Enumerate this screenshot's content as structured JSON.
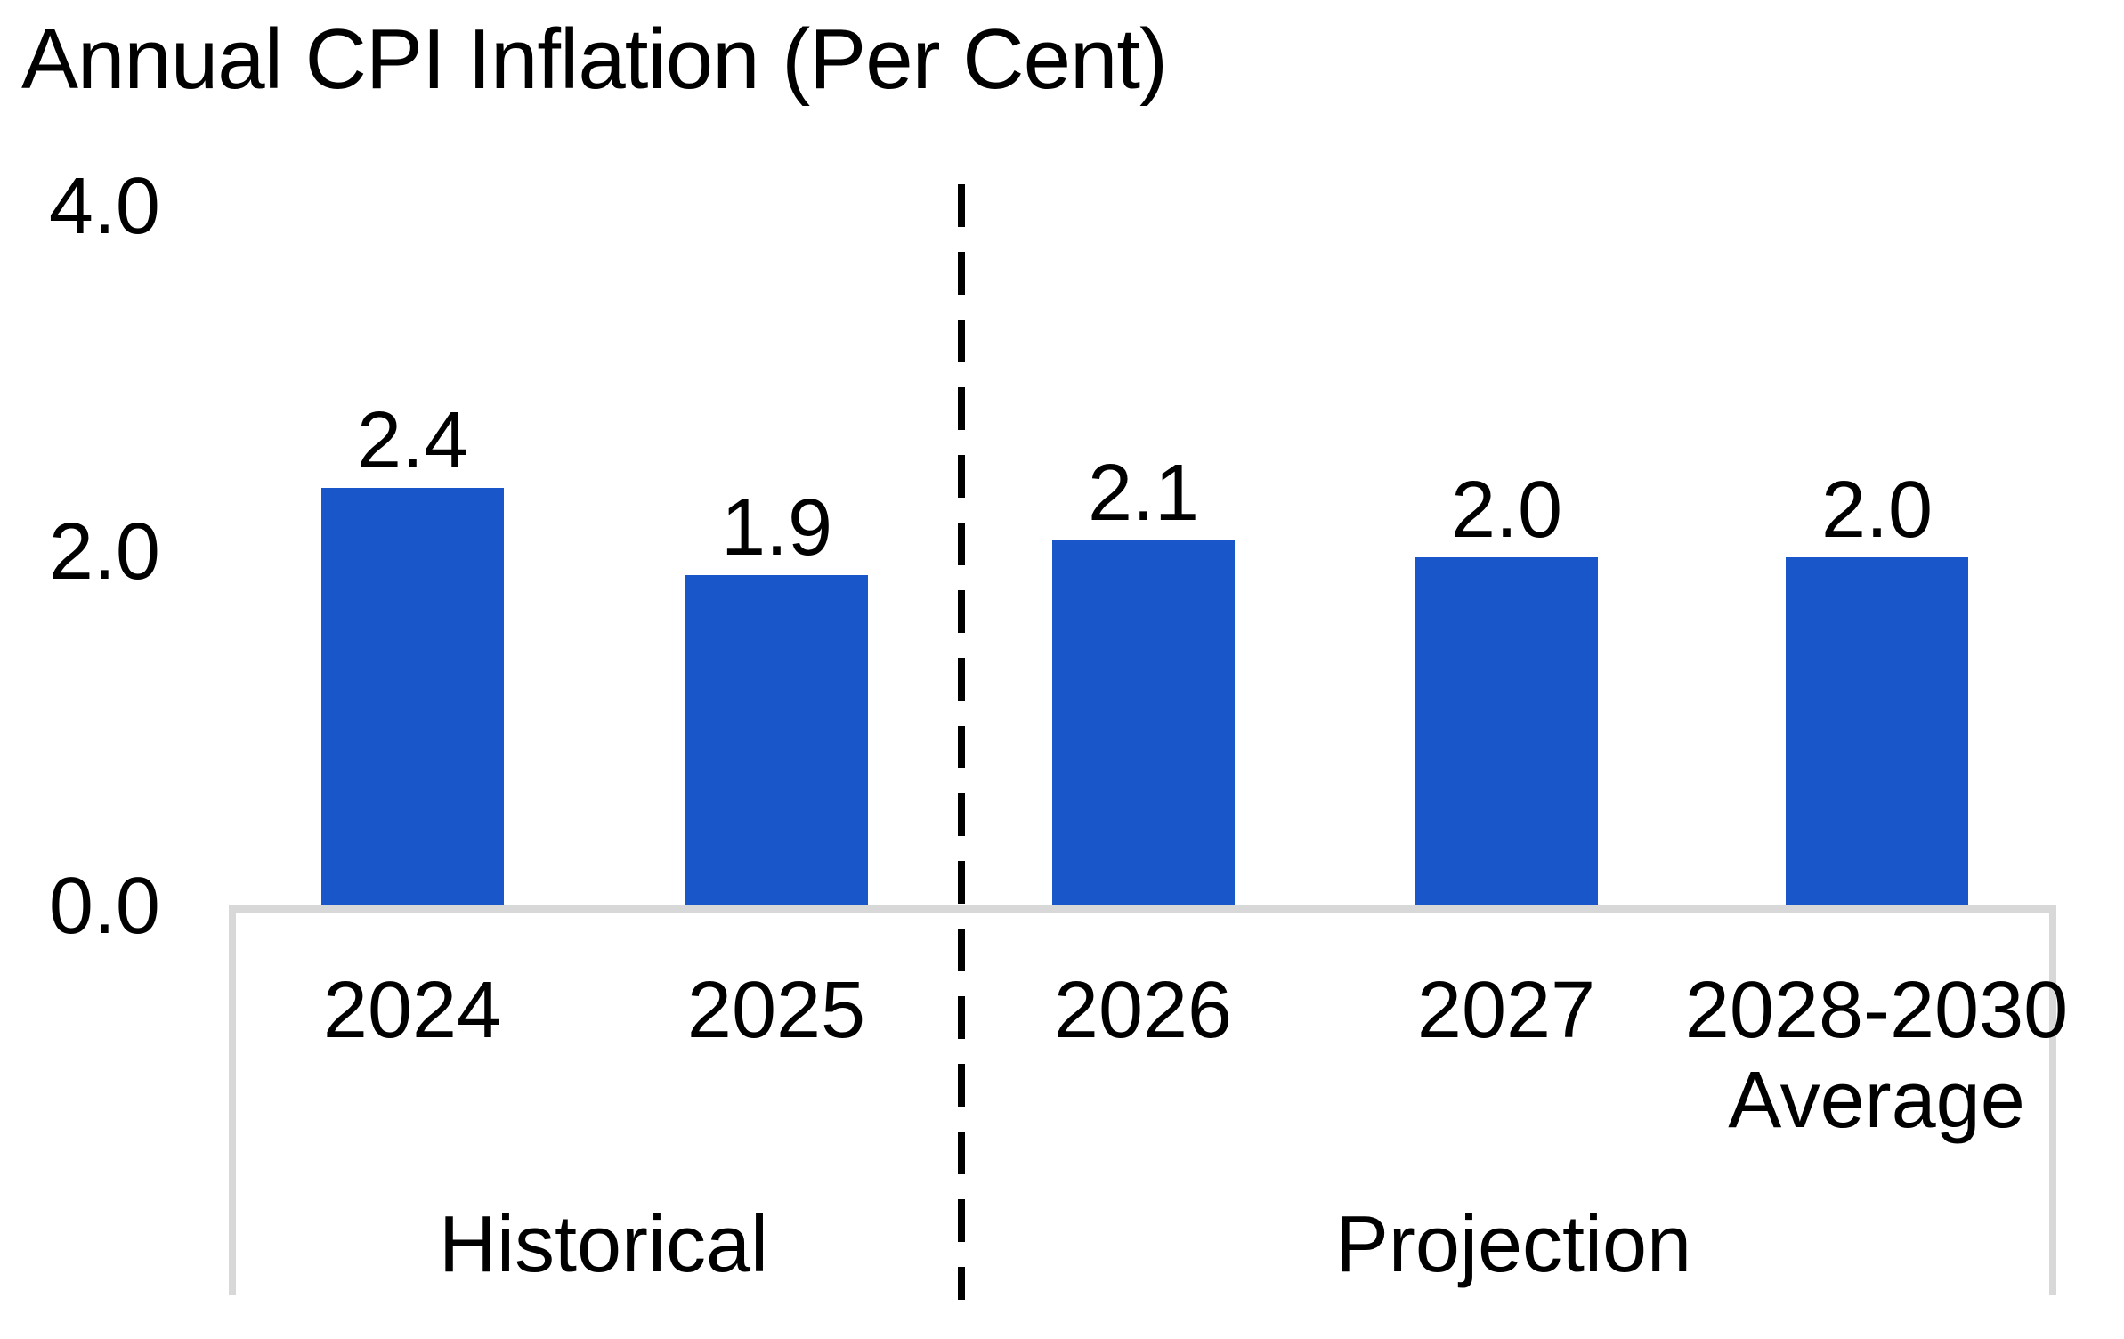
{
  "title": "Annual CPI Inflation (Per Cent)",
  "colors": {
    "bar": "#1956C9",
    "frame": "#D8D8D8",
    "text": "#000000",
    "separator": "#000000"
  },
  "y_axis": {
    "ticks": [
      "4.0",
      "2.0",
      "0.0"
    ]
  },
  "x_axis": {
    "labels": [
      "2024",
      "2025",
      "2026",
      "2027",
      "2028-2030"
    ],
    "last_label_line2": "Average"
  },
  "sections": {
    "historical": "Historical",
    "projection": "Projection"
  },
  "chart_data": {
    "type": "bar",
    "title": "Annual CPI Inflation (Per Cent)",
    "categories": [
      "2024",
      "2025",
      "2026",
      "2027",
      "2028-2030 Average"
    ],
    "values": [
      2.4,
      1.9,
      2.1,
      2.0,
      2.0
    ],
    "value_labels": [
      "2.4",
      "1.9",
      "2.1",
      "2.0",
      "2.0"
    ],
    "xlabel": "",
    "ylabel": "",
    "ylim": [
      0.0,
      4.0
    ],
    "y_ticks": [
      0.0,
      2.0,
      4.0
    ],
    "grid": false,
    "legend": "none",
    "bar_color": "#1956C9",
    "sections": [
      {
        "label": "Historical",
        "categories": [
          "2024",
          "2025"
        ]
      },
      {
        "label": "Projection",
        "categories": [
          "2026",
          "2027",
          "2028-2030 Average"
        ]
      }
    ],
    "separator": {
      "style": "dashed",
      "orientation": "vertical",
      "between": [
        "2025",
        "2026"
      ]
    }
  }
}
